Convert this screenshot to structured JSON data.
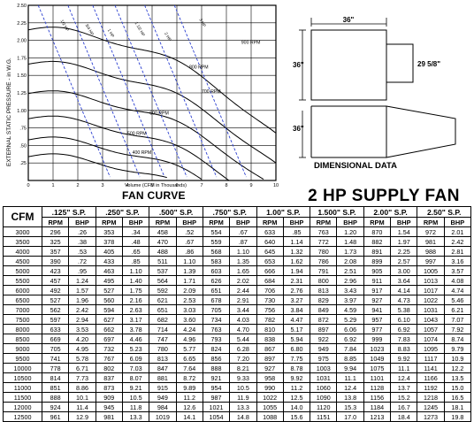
{
  "chart": {
    "title": "FAN CURVE",
    "xlabel": "Volume (CFM in Thousands)",
    "ylabel": "EXTERNAL STATIC PRESSURE - in W.G.",
    "y_ticks": [
      "2.50",
      "2.25",
      "2.00",
      "1.75",
      "1.50",
      "1.25",
      "1.00",
      ".75",
      ".50",
      ".25"
    ],
    "y_top_tick": "2.50",
    "x_ticks": [
      "0",
      "1",
      "2",
      "3",
      "4",
      "5",
      "6",
      "7",
      "8",
      "9",
      "10"
    ],
    "rpm_labels": [
      "400 RPM",
      "500 RPM",
      "600 RPM",
      "700 RPM",
      "800 RPM",
      "900 RPM"
    ],
    "hp_labels": [
      "1/2 HP",
      "3/4 HP",
      "1 HP",
      "1 1/2 HP",
      "2 HP",
      "3 HP"
    ]
  },
  "dimensional": {
    "title": "DIMENSIONAL DATA",
    "width": "36\"",
    "height": "36\"",
    "outlet": "29 5/8\"",
    "depth": "36\""
  },
  "fan_title": "2 HP SUPPLY FAN",
  "table": {
    "cfm_header": "CFM",
    "sp_headers": [
      ".125\" S.P.",
      ".250\" S.P.",
      ".500\" S.P.",
      ".750\" S.P.",
      "1.00\" S.P.",
      "1.500\" S.P.",
      "2.00\" S.P.",
      "2.50\" S.P."
    ],
    "rpm_label": "RPM",
    "bhp_label": "BHP",
    "rows": [
      {
        "cfm": "3000",
        "v": [
          "296",
          ".26",
          "353",
          ".34",
          "458",
          ".52",
          "554",
          ".67",
          "633",
          ".85",
          "763",
          "1.20",
          "870",
          "1.54",
          "972",
          "2.01"
        ]
      },
      {
        "cfm": "3500",
        "v": [
          "325",
          ".38",
          "378",
          ".48",
          "470",
          ".67",
          "559",
          ".87",
          "640",
          "1.14",
          "772",
          "1.48",
          "882",
          "1.97",
          "981",
          "2.42"
        ]
      },
      {
        "cfm": "4000",
        "v": [
          "357",
          ".53",
          "405",
          ".65",
          "488",
          ".86",
          "568",
          "1.10",
          "645",
          "1.32",
          "780",
          "1.73",
          "891",
          "2.25",
          "988",
          "2.81"
        ]
      },
      {
        "cfm": "4500",
        "v": [
          "390",
          ".72",
          "433",
          ".85",
          "511",
          "1.10",
          "583",
          "1.35",
          "653",
          "1.62",
          "786",
          "2.08",
          "899",
          "2.57",
          "997",
          "3.16"
        ]
      },
      {
        "cfm": "5000",
        "v": [
          "423",
          ".95",
          "463",
          "1.10",
          "537",
          "1.39",
          "603",
          "1.65",
          "666",
          "1.94",
          "791",
          "2.51",
          "905",
          "3.00",
          "1005",
          "3.57"
        ]
      },
      {
        "cfm": "5500",
        "v": [
          "457",
          "1.24",
          "495",
          "1.40",
          "564",
          "1.71",
          "626",
          "2.02",
          "684",
          "2.31",
          "800",
          "2.96",
          "911",
          "3.64",
          "1013",
          "4.08"
        ]
      },
      {
        "cfm": "6000",
        "v": [
          "492",
          "1.57",
          "527",
          "1.75",
          "592",
          "2.09",
          "651",
          "2.44",
          "706",
          "2.76",
          "813",
          "3.43",
          "917",
          "4.14",
          "1017",
          "4.74"
        ]
      },
      {
        "cfm": "6500",
        "v": [
          "527",
          "1.96",
          "560",
          "2.16",
          "621",
          "2.53",
          "678",
          "2.91",
          "730",
          "3.27",
          "829",
          "3.97",
          "927",
          "4.73",
          "1022",
          "5.46"
        ]
      },
      {
        "cfm": "7000",
        "v": [
          "562",
          "2.42",
          "594",
          "2.63",
          "651",
          "3.03",
          "705",
          "3.44",
          "756",
          "3.84",
          "849",
          "4.59",
          "941",
          "5.38",
          "1031",
          "6.21"
        ]
      },
      {
        "cfm": "7500",
        "v": [
          "597",
          "2.94",
          "627",
          "3.17",
          "682",
          "3.60",
          "734",
          "4.03",
          "782",
          "4.47",
          "872",
          "5.29",
          "957",
          "6.10",
          "1043",
          "7.07"
        ]
      },
      {
        "cfm": "8000",
        "v": [
          "633",
          "3.53",
          "662",
          "3.78",
          "714",
          "4.24",
          "763",
          "4.70",
          "810",
          "5.17",
          "897",
          "6.06",
          "977",
          "6.92",
          "1057",
          "7.92"
        ]
      },
      {
        "cfm": "8500",
        "v": [
          "669",
          "4.20",
          "697",
          "4.46",
          "747",
          "4.96",
          "793",
          "5.44",
          "838",
          "5.94",
          "922",
          "6.92",
          "999",
          "7.83",
          "1074",
          "8.74"
        ]
      },
      {
        "cfm": "9000",
        "v": [
          "705",
          "4.95",
          "732",
          "5.23",
          "780",
          "5.77",
          "824",
          "6.28",
          "867",
          "6.80",
          "949",
          "7.84",
          "1023",
          "8.83",
          "1095",
          "9.79"
        ]
      },
      {
        "cfm": "9500",
        "v": [
          "741",
          "5.78",
          "767",
          "6.09",
          "813",
          "6.65",
          "856",
          "7.20",
          "897",
          "7.75",
          "975",
          "8.85",
          "1049",
          "9.92",
          "1117",
          "10.9"
        ]
      },
      {
        "cfm": "10000",
        "v": [
          "778",
          "6.71",
          "802",
          "7.03",
          "847",
          "7.64",
          "888",
          "8.21",
          "927",
          "8.78",
          "1003",
          "9.94",
          "1075",
          "11.1",
          "1141",
          "12.2"
        ]
      },
      {
        "cfm": "10500",
        "v": [
          "814",
          "7.73",
          "837",
          "8.07",
          "881",
          "8.72",
          "921",
          "9.33",
          "958",
          "9.92",
          "1031",
          "11.1",
          "1101",
          "12.4",
          "1166",
          "13.5"
        ]
      },
      {
        "cfm": "11000",
        "v": [
          "851",
          "8.86",
          "873",
          "9.21",
          "915",
          "9.89",
          "954",
          "10.5",
          "990",
          "11.2",
          "1060",
          "12.4",
          "1128",
          "13.7",
          "1192",
          "15.0"
        ]
      },
      {
        "cfm": "11500",
        "v": [
          "888",
          "10.1",
          "909",
          "10.5",
          "949",
          "11.2",
          "987",
          "11.9",
          "1022",
          "12.5",
          "1090",
          "13.8",
          "1156",
          "15.2",
          "1218",
          "16.5"
        ]
      },
      {
        "cfm": "12000",
        "v": [
          "924",
          "11.4",
          "945",
          "11.8",
          "984",
          "12.6",
          "1021",
          "13.3",
          "1055",
          "14.0",
          "1120",
          "15.3",
          "1184",
          "16.7",
          "1245",
          "18.1"
        ]
      },
      {
        "cfm": "12500",
        "v": [
          "961",
          "12.9",
          "981",
          "13.3",
          "1019",
          "14.1",
          "1054",
          "14.8",
          "1088",
          "15.6",
          "1151",
          "17.0",
          "1213",
          "18.4",
          "1273",
          "19.8"
        ]
      }
    ]
  }
}
